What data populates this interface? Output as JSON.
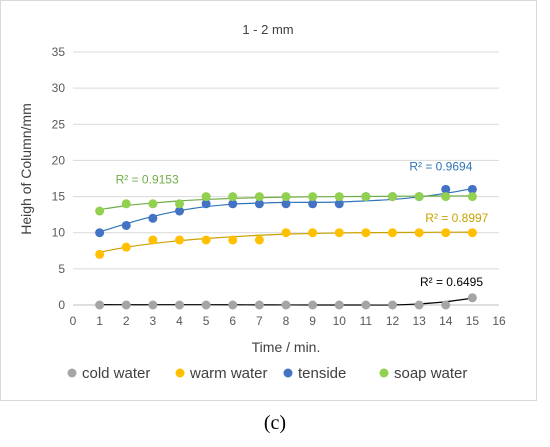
{
  "chart_data": {
    "type": "scatter",
    "title": "1 - 2 mm",
    "xlabel": "Time / min.",
    "ylabel": "Heigh of Column/mm",
    "xlim": [
      0,
      16
    ],
    "ylim": [
      0,
      35
    ],
    "x_ticks": [
      "0",
      "1",
      "2",
      "3",
      "4",
      "5",
      "6",
      "7",
      "8",
      "9",
      "10",
      "11",
      "12",
      "13",
      "14",
      "15",
      "16"
    ],
    "y_ticks": [
      "0",
      "5",
      "10",
      "15",
      "20",
      "25",
      "30",
      "35"
    ],
    "grid": "horizontal",
    "legend_position": "bottom",
    "x": [
      1,
      2,
      3,
      4,
      5,
      6,
      7,
      8,
      9,
      10,
      11,
      12,
      13,
      14,
      15
    ],
    "series": [
      {
        "name": "cold water",
        "color": "#a5a5a5",
        "trend_color": "#000000",
        "values": [
          0,
          0,
          0,
          0,
          0,
          0,
          0,
          0,
          0,
          0,
          0,
          0,
          0,
          0,
          1
        ],
        "r2": "R² = 0.6495",
        "trend": [
          0.05,
          0.04,
          0.04,
          0.04,
          0.04,
          0.03,
          0.02,
          0.01,
          0,
          0,
          0,
          0,
          0.15,
          0.45,
          0.95
        ]
      },
      {
        "name": "warm water",
        "color": "#ffc000",
        "trend_color": "#c9a100",
        "values": [
          7,
          8,
          9,
          9,
          9,
          9,
          9,
          10,
          10,
          10,
          10,
          10,
          10,
          10,
          10
        ],
        "r2": "R² = 0.8997",
        "trend": [
          7.3,
          8.0,
          8.5,
          8.9,
          9.2,
          9.45,
          9.65,
          9.8,
          9.9,
          9.97,
          10.0,
          10.03,
          10.05,
          10.07,
          10.08
        ]
      },
      {
        "name": "tenside",
        "color": "#4472c4",
        "trend_color": "#2e75b6",
        "values": [
          10,
          11,
          12,
          13,
          14,
          14,
          14,
          14,
          14,
          14,
          15,
          15,
          15,
          16,
          16
        ],
        "r2": "R² = 0.9694",
        "trend": [
          10.1,
          11.25,
          12.25,
          13.05,
          13.6,
          13.95,
          14.1,
          14.2,
          14.2,
          14.25,
          14.4,
          14.6,
          14.95,
          15.45,
          16.1
        ]
      },
      {
        "name": "soap water",
        "color": "#92d050",
        "trend_color": "#70ad47",
        "values": [
          13,
          14,
          14,
          14,
          15,
          15,
          15,
          15,
          15,
          15,
          15,
          15,
          15,
          15,
          15
        ],
        "r2": "R² = 0.9153",
        "trend": [
          13.2,
          13.75,
          14.1,
          14.4,
          14.6,
          14.75,
          14.85,
          14.92,
          14.97,
          15.0,
          15.02,
          15.04,
          15.06,
          15.08,
          15.1
        ]
      }
    ]
  },
  "panel_label": "(c)"
}
